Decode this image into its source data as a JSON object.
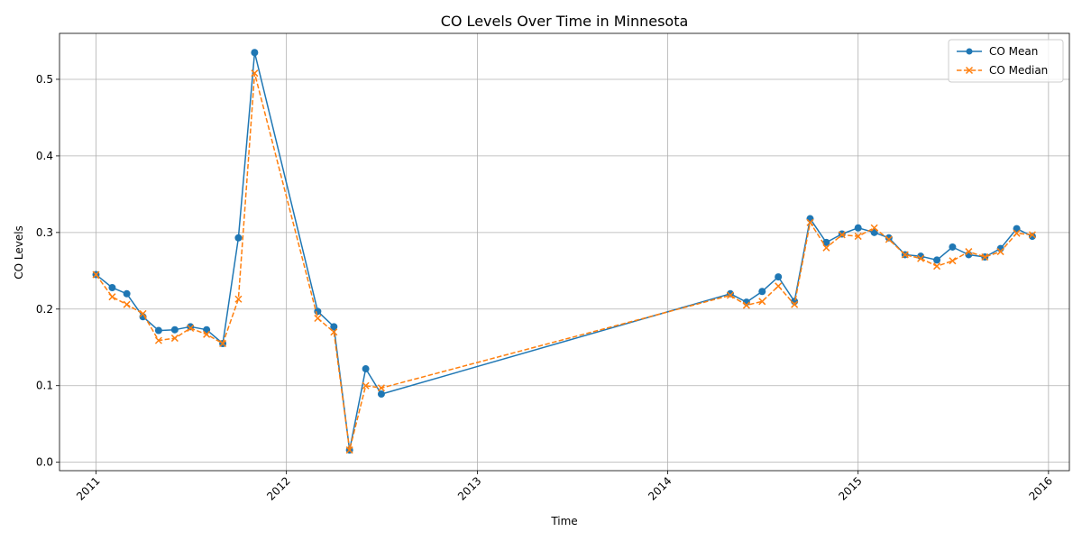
{
  "chart_data": {
    "type": "line",
    "title": "CO Levels Over Time in Minnesota",
    "xlabel": "Time",
    "ylabel": "CO Levels",
    "x_ticks": [
      "2011",
      "2012",
      "2013",
      "2014",
      "2015",
      "2016"
    ],
    "y_ticks": [
      "0.0",
      "0.1",
      "0.2",
      "0.3",
      "0.4",
      "0.5"
    ],
    "xlim": [
      "2010-10-23",
      "2016-02-10"
    ],
    "ylim": [
      -0.011,
      0.56
    ],
    "grid": true,
    "legend_position": "top-right",
    "x": [
      "2011-01-01",
      "2011-02-01",
      "2011-03-01",
      "2011-04-01",
      "2011-05-01",
      "2011-06-01",
      "2011-07-01",
      "2011-08-01",
      "2011-09-01",
      "2011-10-01",
      "2011-11-01",
      "2012-03-01",
      "2012-04-01",
      "2012-05-01",
      "2012-06-01",
      "2012-07-01",
      "2014-05-01",
      "2014-06-01",
      "2014-07-01",
      "2014-08-01",
      "2014-09-01",
      "2014-10-01",
      "2014-11-01",
      "2014-12-01",
      "2015-01-01",
      "2015-02-01",
      "2015-03-01",
      "2015-04-01",
      "2015-05-01",
      "2015-06-01",
      "2015-07-01",
      "2015-08-01",
      "2015-09-01",
      "2015-10-01",
      "2015-11-01",
      "2015-12-01"
    ],
    "series": [
      {
        "name": "CO Mean",
        "color": "#1f77b4",
        "style": "solid",
        "marker": "circle",
        "values": [
          0.245,
          0.228,
          0.22,
          0.19,
          0.172,
          0.173,
          0.177,
          0.173,
          0.155,
          0.293,
          0.535,
          0.197,
          0.177,
          0.016,
          0.122,
          0.089,
          0.22,
          0.209,
          0.223,
          0.242,
          0.21,
          0.318,
          0.287,
          0.298,
          0.306,
          0.3,
          0.293,
          0.271,
          0.269,
          0.264,
          0.281,
          0.271,
          0.268,
          0.279,
          0.305,
          0.295
        ]
      },
      {
        "name": "CO Median",
        "color": "#ff7f0e",
        "style": "dashed",
        "marker": "x",
        "values": [
          0.245,
          0.216,
          0.206,
          0.194,
          0.159,
          0.162,
          0.175,
          0.167,
          0.155,
          0.213,
          0.508,
          0.188,
          0.17,
          0.016,
          0.1,
          0.097,
          0.218,
          0.205,
          0.21,
          0.23,
          0.206,
          0.313,
          0.28,
          0.297,
          0.295,
          0.306,
          0.291,
          0.271,
          0.266,
          0.256,
          0.263,
          0.275,
          0.268,
          0.275,
          0.299,
          0.297
        ]
      }
    ]
  }
}
